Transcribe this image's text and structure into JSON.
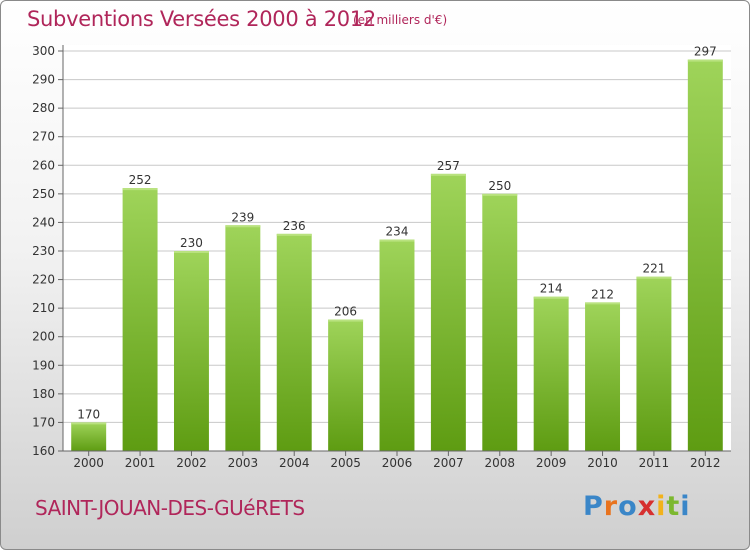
{
  "header": {
    "title": "Subventions Versées 2000 à 2012",
    "subtitle": "(en milliers d'€)"
  },
  "footer": {
    "commune": "SAINT-JOUAN-DES-GUéRETS",
    "logo_text": "Proxiti",
    "logo_colors": [
      "#3a86c8",
      "#e8731e",
      "#3a86c8",
      "#d62f2f",
      "#f2b21b",
      "#7cb82f",
      "#3a86c8"
    ]
  },
  "colors": {
    "bar_top": "#9fd45a",
    "bar_bottom": "#5e9c12",
    "grid": "#c8c8c8",
    "title": "#b0265a"
  },
  "chart_data": {
    "type": "bar",
    "categories": [
      "2000",
      "2001",
      "2002",
      "2003",
      "2004",
      "2005",
      "2006",
      "2007",
      "2008",
      "2009",
      "2010",
      "2011",
      "2012"
    ],
    "values": [
      170,
      252,
      230,
      239,
      236,
      206,
      234,
      257,
      250,
      214,
      212,
      221,
      297
    ],
    "ylim": [
      160,
      300
    ],
    "yticks": [
      160,
      170,
      180,
      190,
      200,
      210,
      220,
      230,
      240,
      250,
      260,
      270,
      280,
      290,
      300
    ],
    "grid": true
  }
}
